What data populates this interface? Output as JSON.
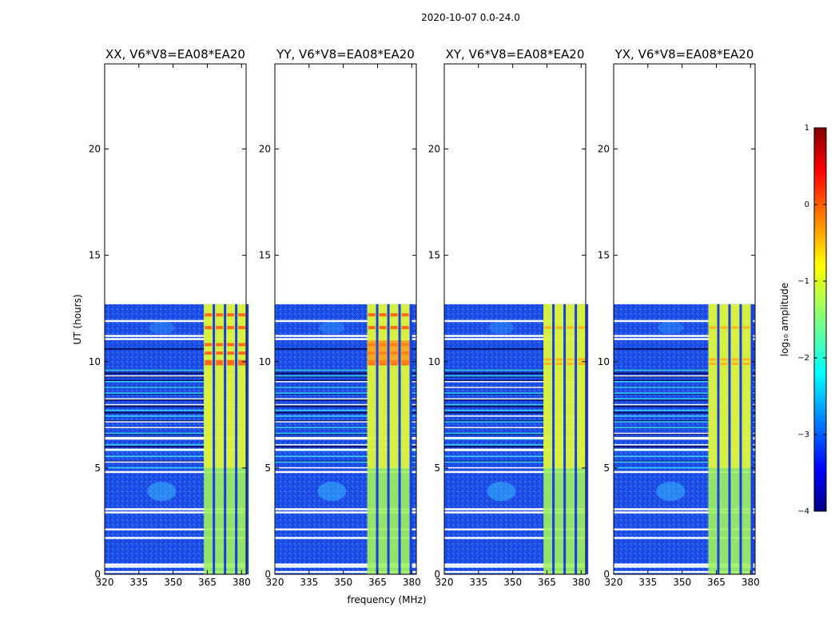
{
  "chart_data": {
    "type": "heatmap",
    "suptitle": "2020-10-07 0.0-24.0",
    "xlabel": "frequency (MHz)",
    "ylabel": "UT (hours)",
    "xlim": [
      320,
      382
    ],
    "ylim": [
      0,
      24
    ],
    "xticks": [
      "320",
      "335",
      "350",
      "365",
      "380"
    ],
    "yticks": [
      "0",
      "5",
      "10",
      "15",
      "20"
    ],
    "panels": [
      {
        "title": "XX, V6*V8=EA08*EA20",
        "rfi_start_mhz": 363.5,
        "strong_rfi": true
      },
      {
        "title": "YY, V6*V8=EA08*EA20",
        "rfi_start_mhz": 360.5,
        "strong_rfi": true
      },
      {
        "title": "XY, V6*V8=EA08*EA20",
        "rfi_start_mhz": 363.5,
        "strong_rfi": false
      },
      {
        "title": "YX, V6*V8=EA08*EA20",
        "rfi_start_mhz": 361.5,
        "strong_rfi": false
      }
    ],
    "data_end_hours": 12.7,
    "colorbar": {
      "label": "log₁₀ amplitude",
      "ticks": [
        "1",
        "0",
        "−1",
        "−2",
        "−3",
        "−4"
      ],
      "range": [
        -4,
        1
      ]
    }
  }
}
